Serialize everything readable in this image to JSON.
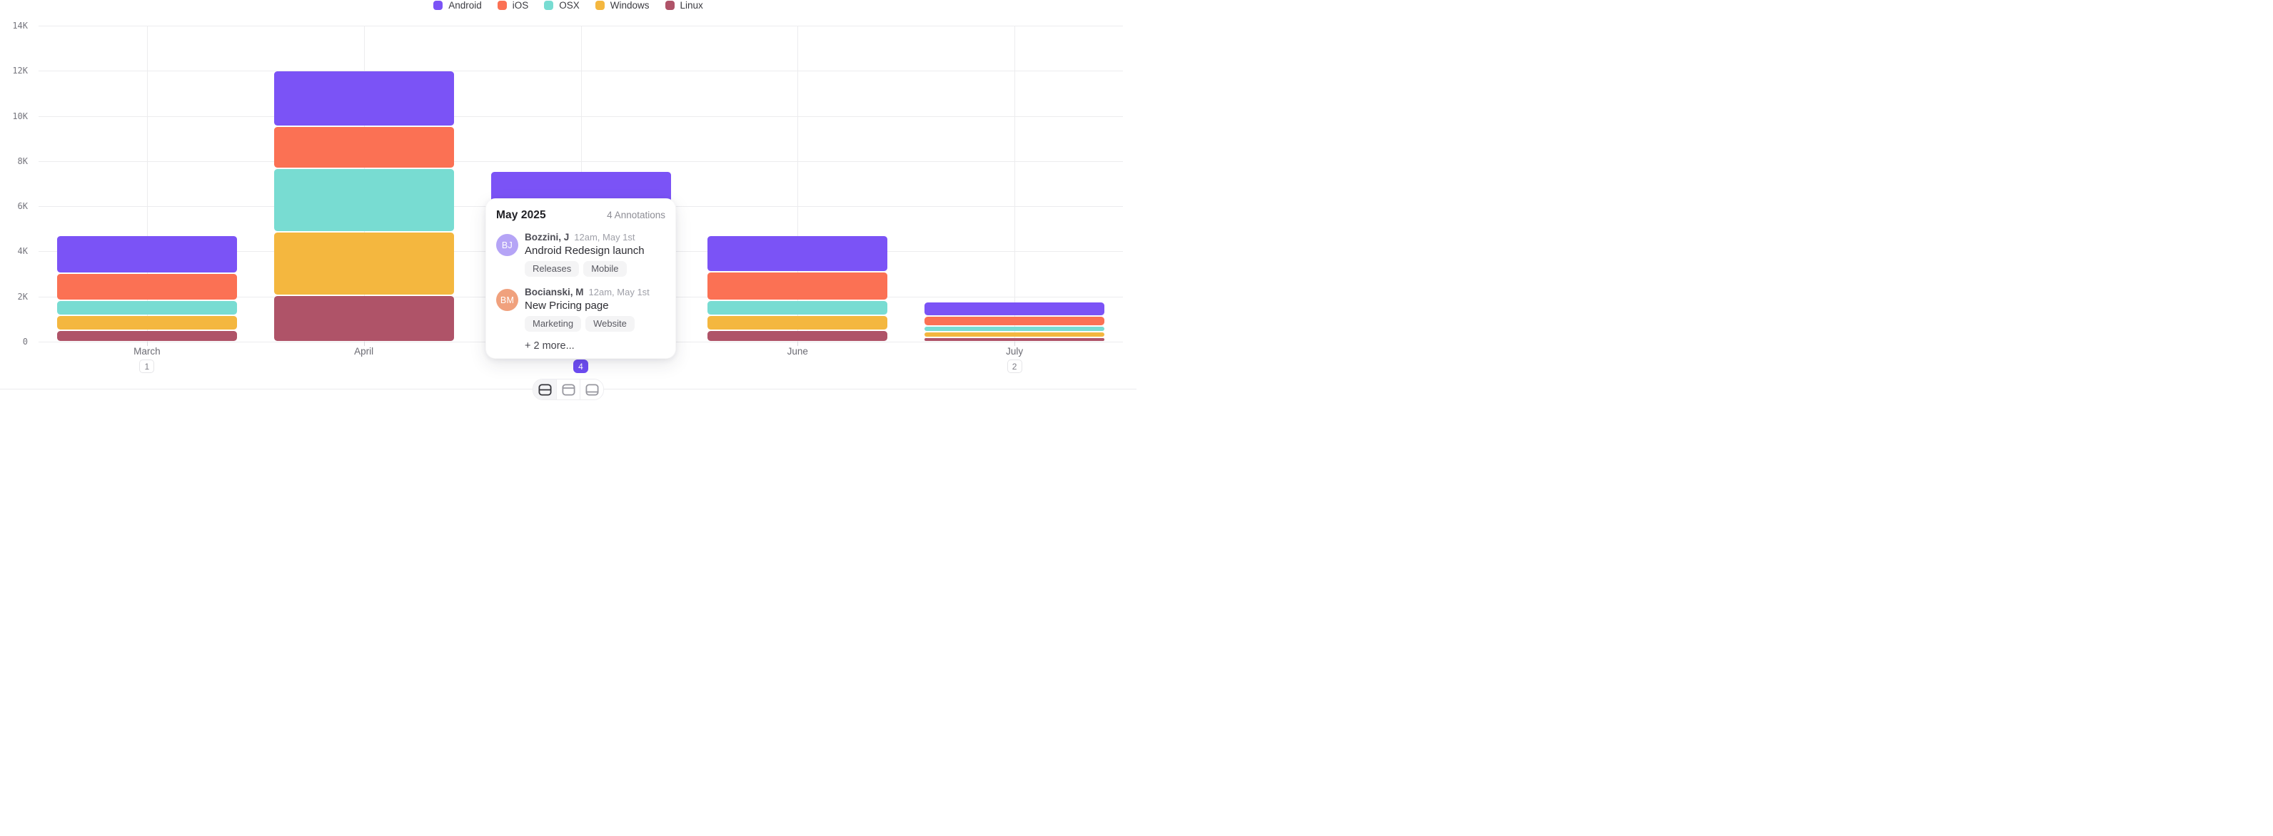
{
  "legend": {
    "items": [
      {
        "label": "Android",
        "color": "#7b53f6"
      },
      {
        "label": "iOS",
        "color": "#fb7154"
      },
      {
        "label": "OSX",
        "color": "#78dcd2"
      },
      {
        "label": "Windows",
        "color": "#f4b73f"
      },
      {
        "label": "Linux",
        "color": "#af5368"
      }
    ]
  },
  "chart_data": {
    "type": "bar",
    "stacked": true,
    "title": "",
    "categories": [
      "March",
      "April",
      "May",
      "June",
      "July"
    ],
    "series": [
      {
        "name": "Android",
        "color": "#7b53f6",
        "values": [
          1.6,
          2.4,
          2.0,
          1.55,
          0.55
        ]
      },
      {
        "name": "iOS",
        "color": "#fb7154",
        "values": [
          1.15,
          1.8,
          1.6,
          1.2,
          0.4
        ]
      },
      {
        "name": "OSX",
        "color": "#78dcd2",
        "values": [
          0.6,
          2.75,
          1.5,
          0.58,
          0.17
        ]
      },
      {
        "name": "Windows",
        "color": "#f4b73f",
        "values": [
          0.58,
          2.75,
          1.35,
          0.6,
          0.2
        ]
      },
      {
        "name": "Linux",
        "color": "#af5368",
        "values": [
          0.45,
          2.0,
          0.8,
          0.45,
          0.12
        ]
      }
    ],
    "stack_order_bottom_to_top": [
      "Linux",
      "Windows",
      "OSX",
      "iOS",
      "Android"
    ],
    "unit": "K",
    "ylim": [
      0,
      14
    ],
    "yticks": [
      "0",
      "2K",
      "4K",
      "6K",
      "8K",
      "10K",
      "12K",
      "14K"
    ],
    "grid": true,
    "legend_position": "top-center"
  },
  "x_axis": {
    "badges": [
      {
        "category": "March",
        "count": "1",
        "active": false
      },
      {
        "category": "May",
        "count": "4",
        "active": true
      },
      {
        "category": "July",
        "count": "2",
        "active": false
      }
    ],
    "active_badge_color": "#6d4cf2"
  },
  "popover": {
    "title": "May 2025",
    "count_label": "4 Annotations",
    "entries": [
      {
        "initials": "BJ",
        "avatar_color": "#b5a4f6",
        "author": "Bozzini, J",
        "timestamp": "12am, May 1st",
        "text": "Android Redesign launch",
        "tags": [
          "Releases",
          "Mobile"
        ]
      },
      {
        "initials": "BM",
        "avatar_color": "#f0a17d",
        "author": "Bocianski, M",
        "timestamp": "12am, May 1st",
        "text": "New Pricing page",
        "tags": [
          "Marketing",
          "Website"
        ]
      }
    ],
    "more_label": "+ 2 more..."
  },
  "toolbar": {
    "segments": [
      {
        "name": "split-rows-equal",
        "active": true
      },
      {
        "name": "split-rows-top",
        "active": false
      },
      {
        "name": "split-rows-bottom",
        "active": false
      }
    ]
  }
}
